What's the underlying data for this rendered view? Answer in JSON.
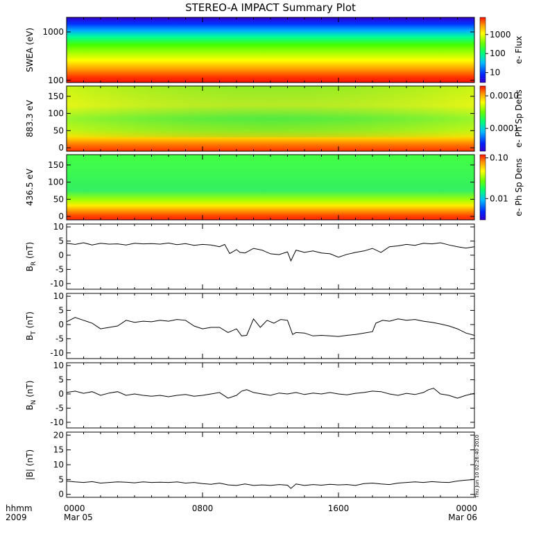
{
  "title": "STEREO-A IMPACT Summary Plot",
  "footer": {
    "left_line1": "hhmm",
    "left_line2": "2009",
    "timestamp": "Thu Jun 10 02:26:40 2010"
  },
  "x_axis": {
    "ticks": [
      {
        "time": "0000",
        "date": "Mar 05",
        "hour": 0
      },
      {
        "time": "0800",
        "date": "",
        "hour": 8
      },
      {
        "time": "1600",
        "date": "",
        "hour": 16
      },
      {
        "time": "0000",
        "date": "Mar 06",
        "hour": 24
      }
    ]
  },
  "colors": {
    "line": "#000000",
    "missing": "#ffffff"
  },
  "chart_data": [
    {
      "type": "heatmap",
      "name": "swea",
      "ylabel": "SWEA (eV)",
      "yscale": "log",
      "ylim": [
        90,
        2000
      ],
      "yticks": [
        "1000",
        "100"
      ],
      "ytick_values": [
        1000,
        100
      ],
      "colorbar": {
        "label": "e- Flux",
        "scale": "log",
        "ticks": [
          "1000",
          "100",
          "10"
        ],
        "tick_values": [
          1000,
          100,
          10
        ],
        "range": [
          3,
          8000
        ]
      },
      "x_range_hours": [
        0,
        24
      ],
      "profile": "energy-spectrum: ~6000 flux near 100 eV decreasing to ~10 near 2000 eV"
    },
    {
      "type": "heatmap",
      "name": "pad_883",
      "ylabel": "883.3 eV",
      "ylim": [
        -10,
        180
      ],
      "yticks": [
        "150",
        "100",
        "50",
        "0"
      ],
      "ytick_values": [
        150,
        100,
        50,
        0
      ],
      "colorbar": {
        "label": "e- Ph Sp Dens",
        "scale": "log",
        "ticks": [
          "0.0010",
          "0.0001"
        ],
        "tick_values": [
          0.001,
          0.0001
        ],
        "range": [
          2e-05,
          0.002
        ]
      },
      "x_range_hours": [
        0,
        24
      ]
    },
    {
      "type": "heatmap",
      "name": "pad_436",
      "ylabel": "436.5 eV",
      "ylim": [
        -10,
        180
      ],
      "yticks": [
        "150",
        "100",
        "50",
        "0"
      ],
      "ytick_values": [
        150,
        100,
        50,
        0
      ],
      "colorbar": {
        "label": "e- Ph Sp Dens",
        "scale": "log",
        "ticks": [
          "0.10",
          "0.01"
        ],
        "tick_values": [
          0.1,
          0.01
        ],
        "range": [
          0.003,
          0.12
        ]
      },
      "x_range_hours": [
        0,
        24
      ]
    },
    {
      "type": "line",
      "name": "BR",
      "ylabel_main": "B",
      "ylabel_sub": "R",
      "ylabel_unit": " (nT)",
      "ylim": [
        -12,
        11
      ],
      "yticks": [
        "10",
        "5",
        "0",
        "-5",
        "-10"
      ],
      "ytick_values": [
        10,
        5,
        0,
        -5,
        -10
      ],
      "x": [
        0,
        0.5,
        1,
        1.5,
        2,
        2.5,
        3,
        3.5,
        4,
        4.5,
        5,
        5.5,
        6,
        6.5,
        7,
        7.5,
        8,
        8.5,
        9,
        9.3,
        9.6,
        10,
        10.2,
        10.5,
        11,
        11.5,
        12,
        12.5,
        13,
        13.2,
        13.5,
        14,
        14.5,
        15,
        15.5,
        16,
        16.5,
        17,
        17.5,
        18,
        18.5,
        19,
        19.5,
        20,
        20.5,
        21,
        21.5,
        22,
        22.5,
        23,
        23.5,
        24
      ],
      "y": [
        4.2,
        3.8,
        4.4,
        3.6,
        4.2,
        3.9,
        4.0,
        3.6,
        4.2,
        4.0,
        4.1,
        3.9,
        4.3,
        3.7,
        4.1,
        3.5,
        3.8,
        3.6,
        3.0,
        3.8,
        0.6,
        2.0,
        1.0,
        0.8,
        2.4,
        1.8,
        0.5,
        0.2,
        1.2,
        -2.0,
        1.8,
        1.0,
        1.5,
        0.8,
        0.5,
        -0.7,
        0.3,
        1.0,
        1.5,
        2.4,
        1.0,
        3.0,
        3.3,
        3.8,
        3.5,
        4.2,
        4.0,
        4.4,
        3.6,
        3.0,
        2.5,
        3.0
      ]
    },
    {
      "type": "line",
      "name": "BT",
      "ylabel_main": "B",
      "ylabel_sub": "T",
      "ylabel_unit": " (nT)",
      "ylim": [
        -12,
        11
      ],
      "yticks": [
        "10",
        "5",
        "0",
        "-5",
        "-10"
      ],
      "ytick_values": [
        10,
        5,
        0,
        -5,
        -10
      ],
      "x": [
        0,
        0.5,
        1,
        1.5,
        2,
        2.5,
        3,
        3.5,
        4,
        4.5,
        5,
        5.5,
        6,
        6.5,
        7,
        7.5,
        8,
        8.5,
        9,
        9.5,
        10,
        10.3,
        10.6,
        11,
        11.4,
        11.8,
        12.2,
        12.6,
        13,
        13.3,
        13.5,
        14,
        14.5,
        15,
        15.5,
        16,
        16.5,
        17,
        17.5,
        18,
        18.2,
        18.6,
        19,
        19.5,
        20,
        20.5,
        21,
        21.5,
        22,
        22.5,
        23,
        23.5,
        24
      ],
      "y": [
        1.0,
        2.5,
        1.5,
        0.5,
        -1.5,
        -1.0,
        -0.5,
        1.5,
        0.8,
        1.2,
        1.0,
        1.5,
        1.2,
        1.8,
        1.5,
        -0.5,
        -1.5,
        -1.0,
        -1.0,
        -2.8,
        -1.5,
        -4.0,
        -3.8,
        2.0,
        -1.0,
        1.5,
        0.5,
        1.8,
        1.5,
        -3.5,
        -2.8,
        -3.0,
        -4.0,
        -3.8,
        -4.0,
        -4.2,
        -3.8,
        -3.5,
        -3.0,
        -2.5,
        0.5,
        1.5,
        1.2,
        2.0,
        1.5,
        1.8,
        1.2,
        0.8,
        0.2,
        -0.5,
        -1.5,
        -3.0,
        -3.8
      ]
    },
    {
      "type": "line",
      "name": "BN",
      "ylabel_main": "B",
      "ylabel_sub": "N",
      "ylabel_unit": " (nT)",
      "ylim": [
        -12,
        11
      ],
      "yticks": [
        "10",
        "5",
        "0",
        "-5",
        "-10"
      ],
      "ytick_values": [
        10,
        5,
        0,
        -5,
        -10
      ],
      "x": [
        0,
        0.5,
        1,
        1.5,
        2,
        2.5,
        3,
        3.5,
        4,
        4.5,
        5,
        5.5,
        6,
        6.5,
        7,
        7.5,
        8,
        8.5,
        9,
        9.5,
        10,
        10.3,
        10.6,
        11,
        11.5,
        12,
        12.5,
        13,
        13.5,
        14,
        14.5,
        15,
        15.5,
        16,
        16.5,
        17,
        17.5,
        18,
        18.5,
        19,
        19.5,
        20,
        20.5,
        21,
        21.3,
        21.6,
        22,
        22.5,
        23,
        23.5,
        24
      ],
      "y": [
        0.5,
        1.0,
        0.2,
        0.8,
        -0.5,
        0.3,
        0.8,
        -0.5,
        0.0,
        -0.5,
        -0.8,
        -0.5,
        -1.0,
        -0.5,
        -0.2,
        -0.8,
        -0.5,
        0.0,
        0.5,
        -1.5,
        -0.5,
        1.0,
        1.5,
        0.5,
        0.0,
        -0.5,
        0.3,
        0.0,
        0.5,
        -0.2,
        0.3,
        0.0,
        0.5,
        0.0,
        -0.3,
        0.2,
        0.5,
        1.0,
        0.8,
        0.0,
        -0.5,
        0.2,
        -0.2,
        0.5,
        1.5,
        2.0,
        0.0,
        -0.5,
        -1.5,
        -0.5,
        0.2
      ]
    },
    {
      "type": "line",
      "name": "Bmag",
      "ylabel_main": "|B| (nT)",
      "ylabel_sub": "",
      "ylabel_unit": "",
      "ylim": [
        -1,
        21
      ],
      "yticks": [
        "20",
        "15",
        "10",
        "5",
        "0"
      ],
      "ytick_values": [
        20,
        15,
        10,
        5,
        0
      ],
      "x": [
        0,
        0.5,
        1,
        1.5,
        2,
        2.5,
        3,
        3.5,
        4,
        4.5,
        5,
        5.5,
        6,
        6.5,
        7,
        7.5,
        8,
        8.5,
        9,
        9.5,
        10,
        10.5,
        11,
        11.5,
        12,
        12.5,
        13,
        13.2,
        13.5,
        14,
        14.5,
        15,
        15.5,
        16,
        16.5,
        17,
        17.5,
        18,
        18.5,
        19,
        19.5,
        20,
        20.5,
        21,
        21.5,
        22,
        22.5,
        23,
        23.5,
        24
      ],
      "y": [
        4.5,
        4.2,
        4.0,
        4.3,
        3.8,
        4.0,
        4.2,
        4.1,
        3.9,
        4.2,
        4.0,
        4.1,
        4.0,
        4.2,
        3.8,
        4.0,
        3.6,
        3.4,
        3.8,
        3.2,
        3.0,
        3.5,
        3.0,
        3.2,
        3.0,
        3.3,
        3.1,
        2.0,
        3.5,
        3.0,
        3.3,
        3.1,
        3.4,
        3.2,
        3.3,
        3.0,
        3.6,
        3.8,
        3.5,
        3.3,
        3.8,
        4.0,
        4.2,
        4.0,
        4.3,
        4.1,
        4.0,
        4.5,
        4.8,
        5.0
      ]
    }
  ]
}
